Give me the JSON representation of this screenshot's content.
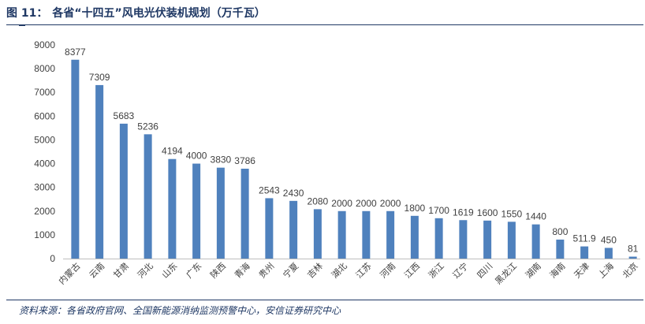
{
  "figure": {
    "label": "图 11：",
    "title": "各省“十四五”风电光伏装机规划（万千瓦）",
    "source": "资料来源：各省政府官网、全国新能源消纳监测预警中心，安信证券研究中心"
  },
  "chart_data": {
    "type": "bar",
    "title": "各省“十四五”风电光伏装机规划（万千瓦）",
    "xlabel": "",
    "ylabel": "",
    "ylim": [
      0,
      9000
    ],
    "yticks": [
      "0",
      "1000",
      "2000",
      "3000",
      "4000",
      "5000",
      "6000",
      "7000",
      "8000",
      "9000"
    ],
    "grid": false,
    "categories": [
      "内蒙古",
      "云南",
      "甘肃",
      "河北",
      "山东",
      "广东",
      "陕西",
      "青海",
      "贵州",
      "宁夏",
      "吉林",
      "湖北",
      "江苏",
      "河南",
      "江西",
      "浙江",
      "辽宁",
      "四川",
      "黑龙江",
      "湖南",
      "海南",
      "天津",
      "上海",
      "北京"
    ],
    "values": [
      8377,
      7309,
      5683,
      5236,
      4194,
      4000,
      3830,
      3786,
      2543,
      2430,
      2080,
      2000,
      2000,
      2000,
      1800,
      1700,
      1619,
      1600,
      1550,
      1440,
      800,
      511.9,
      450,
      81
    ],
    "value_labels": [
      "8377",
      "7309",
      "5683",
      "5236",
      "4194",
      "4000",
      "3830",
      "3786",
      "2543",
      "2430",
      "2080",
      "2000",
      "2000",
      "2000",
      "1800",
      "1700",
      "1619",
      "1600",
      "1550",
      "1440",
      "800",
      "511.9",
      "450",
      "81"
    ],
    "bar_color": "#4f81bd"
  }
}
